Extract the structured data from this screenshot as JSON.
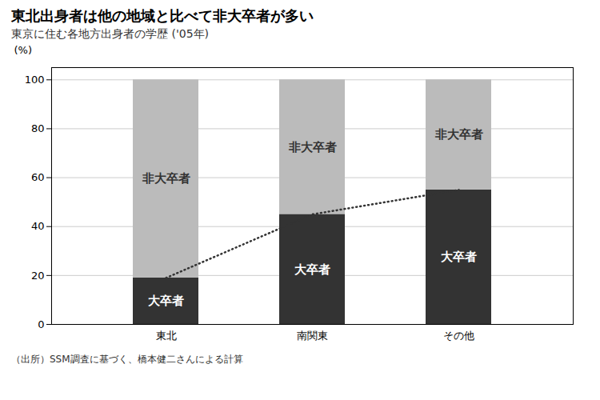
{
  "chart_data": {
    "type": "bar",
    "stacked": true,
    "title": "東北出身者は他の地域と比べて非大卒者が多い",
    "subtitle": "東京に住む各地方出身者の学歴 ('05年)",
    "source": "（出所）SSM調査に基づく、橋本健二さんによる計算",
    "ylabel": "(%)",
    "categories": [
      "東北",
      "南関東",
      "その他"
    ],
    "series": [
      {
        "name": "大卒者",
        "color": "#333333",
        "values": [
          19,
          45,
          55
        ]
      },
      {
        "name": "非大卒者",
        "color": "#bbbbbb",
        "values": [
          81,
          55,
          45
        ]
      }
    ],
    "ylim": [
      0,
      105
    ],
    "yticks": [
      0,
      20,
      40,
      60,
      80,
      100
    ],
    "grid": true
  }
}
